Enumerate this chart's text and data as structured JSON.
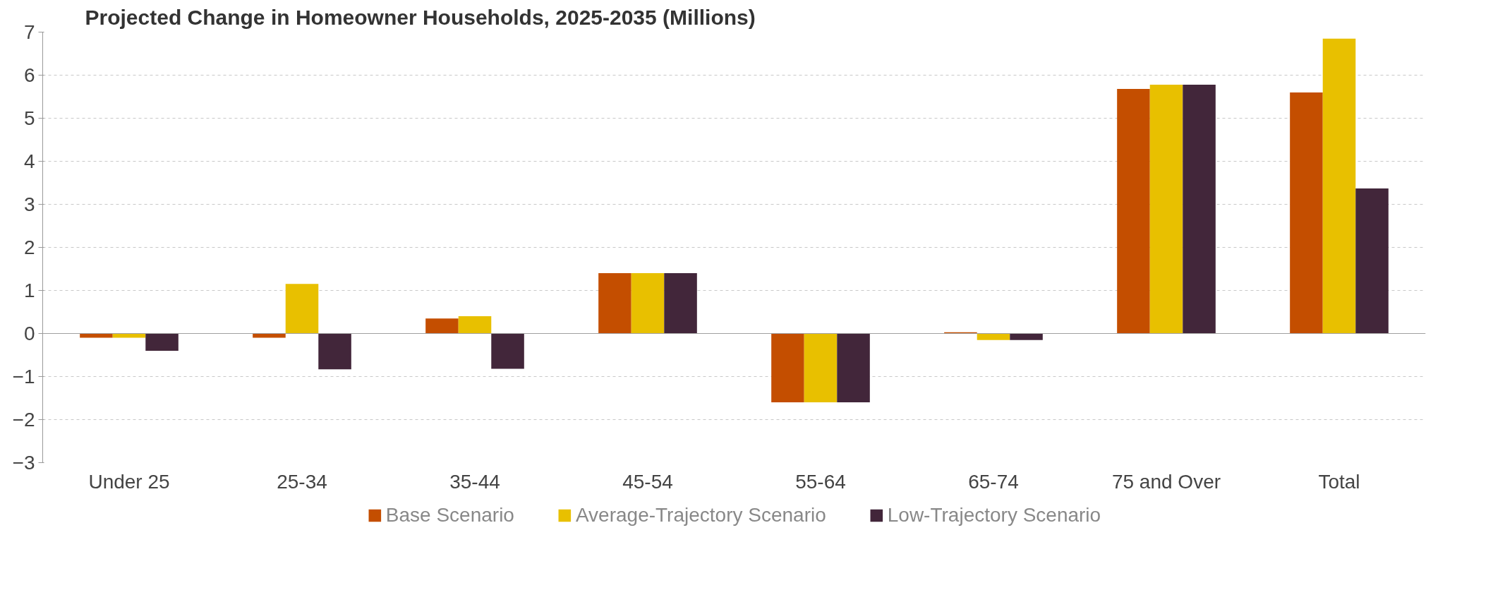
{
  "chart_data": {
    "type": "bar",
    "title": "Projected Change in Homeowner Households, 2025-2035 (Millions)",
    "categories": [
      "Under 25",
      "25-34",
      "35-44",
      "45-54",
      "55-64",
      "65-74",
      "75 and Over",
      "Total"
    ],
    "series": [
      {
        "name": "Base Scenario",
        "color": "#c44e00",
        "values": [
          -0.1,
          -0.1,
          0.35,
          1.4,
          -1.6,
          0.03,
          5.68,
          5.6
        ]
      },
      {
        "name": "Average-Trajectory Scenario",
        "color": "#e8c000",
        "values": [
          -0.1,
          1.15,
          0.4,
          1.4,
          -1.6,
          -0.15,
          5.78,
          6.85
        ]
      },
      {
        "name": "Low-Trajectory Scenario",
        "color": "#42263a",
        "values": [
          -0.4,
          -0.83,
          -0.82,
          1.4,
          -1.6,
          -0.15,
          5.78,
          3.37
        ]
      }
    ],
    "ylim": [
      -3,
      7
    ],
    "yticks": [
      -3,
      -2,
      -1,
      0,
      1,
      2,
      3,
      4,
      5,
      6,
      7
    ],
    "grid": "y",
    "legend": "bottom"
  }
}
